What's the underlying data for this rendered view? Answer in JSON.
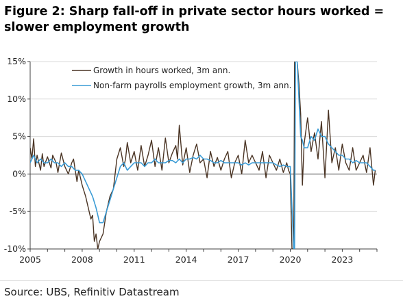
{
  "title_line1": "Figure 2: Sharp fall-off in private sector hours worked =",
  "title_line2": "slower employment growth",
  "source": "Source: UBS, Refinitiv Datastream",
  "colors": {
    "hours": "#4a3424",
    "payrolls": "#3a9bd5",
    "grid": "#d9d9d9",
    "axis": "#404040"
  },
  "chart_data": {
    "type": "line",
    "title": "Figure 2: Sharp fall-off in private sector hours worked = slower employment growth",
    "xlabel": "",
    "ylabel": "",
    "xlim": [
      2005.0,
      2025.0
    ],
    "ylim": [
      -10,
      15
    ],
    "x_ticks": [
      2005,
      2008,
      2011,
      2014,
      2017,
      2020,
      2023
    ],
    "x_tick_labels": [
      "2005",
      "2008",
      "2011",
      "2014",
      "2017",
      "2020",
      "2023"
    ],
    "y_ticks": [
      -10,
      -5,
      0,
      5,
      10,
      15
    ],
    "y_tick_labels": [
      "-10%",
      "-5%",
      "0%",
      "5%",
      "10%",
      "15%"
    ],
    "grid": "horizontal",
    "legend_position": "top-left",
    "series": [
      {
        "name": "Growth in hours worked, 3m ann.",
        "color": "#4a3424",
        "x": [
          2005.0,
          2005.1,
          2005.2,
          2005.3,
          2005.4,
          2005.6,
          2005.7,
          2005.8,
          2006.0,
          2006.2,
          2006.3,
          2006.5,
          2006.6,
          2006.8,
          2007.0,
          2007.2,
          2007.4,
          2007.5,
          2007.7,
          2007.8,
          2008.0,
          2008.2,
          2008.3,
          2008.5,
          2008.6,
          2008.7,
          2008.8,
          2008.9,
          2009.0,
          2009.2,
          2009.4,
          2009.6,
          2009.8,
          2010.0,
          2010.2,
          2010.4,
          2010.5,
          2010.6,
          2010.8,
          2011.0,
          2011.2,
          2011.4,
          2011.6,
          2011.8,
          2012.0,
          2012.2,
          2012.4,
          2012.6,
          2012.8,
          2013.0,
          2013.2,
          2013.4,
          2013.5,
          2013.6,
          2013.8,
          2014.0,
          2014.2,
          2014.4,
          2014.6,
          2014.8,
          2015.0,
          2015.2,
          2015.4,
          2015.6,
          2015.8,
          2016.0,
          2016.2,
          2016.4,
          2016.6,
          2016.8,
          2017.0,
          2017.2,
          2017.4,
          2017.6,
          2017.8,
          2018.0,
          2018.2,
          2018.4,
          2018.6,
          2018.8,
          2019.0,
          2019.2,
          2019.4,
          2019.6,
          2019.8,
          2019.9,
          2020.0,
          2020.1,
          2020.2,
          2020.25,
          2020.3,
          2020.4,
          2020.5,
          2020.6,
          2020.7,
          2020.8,
          2021.0,
          2021.2,
          2021.4,
          2021.6,
          2021.8,
          2022.0,
          2022.2,
          2022.4,
          2022.6,
          2022.8,
          2023.0,
          2023.2,
          2023.4,
          2023.6,
          2023.8,
          2024.0,
          2024.2,
          2024.4,
          2024.6,
          2024.8,
          2024.9
        ],
        "values": [
          3.5,
          2.0,
          4.7,
          1.0,
          2.5,
          0.5,
          2.7,
          1.0,
          2.3,
          0.8,
          2.5,
          1.5,
          0.2,
          2.8,
          1.0,
          0.0,
          1.5,
          2.0,
          -1.0,
          0.5,
          -1.5,
          -3.0,
          -4.0,
          -6.0,
          -5.5,
          -9.0,
          -8.0,
          -10.0,
          -9.0,
          -8.0,
          -5.0,
          -3.0,
          -2.0,
          2.0,
          3.5,
          1.0,
          2.0,
          4.2,
          1.5,
          3.0,
          0.5,
          3.8,
          1.0,
          2.5,
          4.5,
          1.0,
          3.5,
          0.5,
          4.8,
          1.5,
          2.8,
          3.8,
          2.0,
          6.5,
          1.2,
          3.5,
          0.2,
          2.5,
          4.0,
          1.5,
          2.0,
          -0.5,
          3.0,
          1.0,
          2.2,
          0.5,
          2.0,
          3.0,
          -0.5,
          1.5,
          2.5,
          0.0,
          4.5,
          1.5,
          2.5,
          1.5,
          0.5,
          3.0,
          -0.5,
          2.5,
          1.5,
          0.5,
          2.0,
          0.2,
          1.5,
          0.5,
          0.0,
          -10.0,
          -10.0,
          15.0,
          15.0,
          15.0,
          12.0,
          8.0,
          -1.5,
          4.0,
          7.5,
          3.0,
          5.5,
          2.0,
          7.0,
          -0.5,
          8.5,
          1.5,
          3.5,
          0.5,
          4.0,
          1.5,
          0.5,
          3.5,
          0.5,
          1.5,
          2.5,
          0.2,
          3.5,
          -1.5,
          0.5
        ]
      },
      {
        "name": "Non-farm payrolls employment growth, 3m ann.",
        "color": "#3a9bd5",
        "x": [
          2005.0,
          2005.2,
          2005.4,
          2005.6,
          2005.8,
          2006.0,
          2006.2,
          2006.4,
          2006.6,
          2006.8,
          2007.0,
          2007.2,
          2007.4,
          2007.6,
          2007.8,
          2008.0,
          2008.2,
          2008.4,
          2008.6,
          2008.8,
          2008.9,
          2009.0,
          2009.2,
          2009.4,
          2009.6,
          2009.8,
          2010.0,
          2010.2,
          2010.4,
          2010.6,
          2010.8,
          2011.0,
          2011.2,
          2011.4,
          2011.6,
          2011.8,
          2012.0,
          2012.2,
          2012.4,
          2012.6,
          2012.8,
          2013.0,
          2013.2,
          2013.4,
          2013.6,
          2013.8,
          2014.0,
          2014.2,
          2014.4,
          2014.6,
          2014.8,
          2015.0,
          2015.2,
          2015.4,
          2015.6,
          2015.8,
          2016.0,
          2016.2,
          2016.4,
          2016.6,
          2016.8,
          2017.0,
          2017.2,
          2017.4,
          2017.6,
          2017.8,
          2018.0,
          2018.2,
          2018.4,
          2018.6,
          2018.8,
          2019.0,
          2019.2,
          2019.4,
          2019.6,
          2019.8,
          2020.0,
          2020.2,
          2020.25,
          2020.3,
          2020.4,
          2020.5,
          2020.6,
          2020.7,
          2020.8,
          2021.0,
          2021.2,
          2021.4,
          2021.6,
          2021.8,
          2022.0,
          2022.2,
          2022.4,
          2022.6,
          2022.8,
          2023.0,
          2023.2,
          2023.4,
          2023.6,
          2023.8,
          2024.0,
          2024.2,
          2024.4,
          2024.6,
          2024.8,
          2024.9
        ],
        "values": [
          1.5,
          2.5,
          1.5,
          2.0,
          1.5,
          1.5,
          2.0,
          1.5,
          1.5,
          1.0,
          1.5,
          1.0,
          1.0,
          0.5,
          0.5,
          0.0,
          -1.0,
          -2.0,
          -3.0,
          -4.5,
          -5.5,
          -6.5,
          -6.5,
          -5.0,
          -3.5,
          -2.0,
          -0.5,
          1.0,
          1.5,
          0.5,
          1.0,
          1.5,
          1.5,
          1.5,
          1.0,
          1.5,
          1.5,
          2.0,
          1.5,
          1.5,
          1.5,
          1.8,
          1.8,
          1.5,
          2.0,
          1.5,
          2.0,
          2.0,
          2.2,
          2.0,
          2.5,
          2.0,
          2.0,
          1.8,
          1.5,
          1.5,
          1.8,
          1.5,
          1.5,
          1.5,
          1.5,
          1.5,
          1.2,
          1.5,
          1.2,
          1.5,
          1.5,
          1.5,
          1.5,
          1.5,
          1.5,
          1.5,
          1.2,
          1.0,
          1.2,
          1.0,
          1.0,
          -10.0,
          -10.0,
          15.0,
          15.0,
          10.0,
          5.0,
          4.5,
          3.5,
          3.5,
          5.0,
          4.5,
          6.0,
          5.0,
          5.0,
          4.0,
          3.5,
          3.0,
          2.5,
          2.5,
          2.0,
          2.0,
          1.5,
          1.8,
          1.5,
          1.5,
          1.5,
          1.0,
          0.5,
          0.5
        ]
      }
    ]
  }
}
